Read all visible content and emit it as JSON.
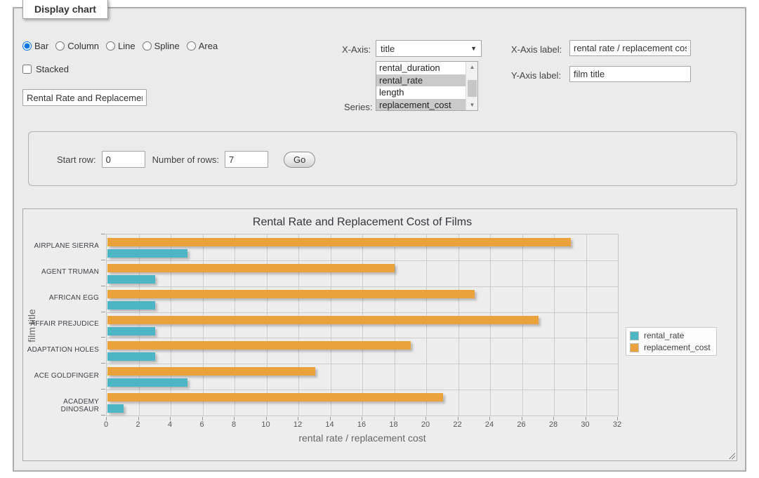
{
  "fieldset": {
    "legend": "Display chart"
  },
  "chart_type": {
    "options": [
      "Bar",
      "Column",
      "Line",
      "Spline",
      "Area"
    ],
    "selected": "Bar"
  },
  "stacked": {
    "label": "Stacked",
    "checked": false
  },
  "title_input": {
    "value": "Rental Rate and Replacement Cost of Films"
  },
  "x_axis": {
    "label": "X-Axis:",
    "selected": "title"
  },
  "series_picker": {
    "label": "Series:",
    "options": [
      {
        "label": "rental_duration",
        "selected": false
      },
      {
        "label": "rental_rate",
        "selected": true
      },
      {
        "label": "length",
        "selected": false
      },
      {
        "label": "replacement_cost",
        "selected": true
      }
    ]
  },
  "axis_labels": {
    "x_label": "X-Axis label:",
    "x_value": "rental rate / replacement cost",
    "y_label": "Y-Axis label:",
    "y_value": "film title"
  },
  "rows_panel": {
    "start_row_label": "Start row:",
    "start_row_value": "0",
    "num_rows_label": "Number of rows:",
    "num_rows_value": "7",
    "go_label": "Go"
  },
  "chart_data": {
    "type": "bar",
    "orientation": "horizontal",
    "title": "Rental Rate and Replacement Cost of Films",
    "xlabel": "rental rate / replacement cost",
    "ylabel": "film title",
    "categories": [
      "AIRPLANE SIERRA",
      "AGENT TRUMAN",
      "AFRICAN EGG",
      "AFFAIR PREJUDICE",
      "ADAPTATION HOLES",
      "ACE GOLDFINGER",
      "ACADEMY DINOSAUR"
    ],
    "series": [
      {
        "name": "rental_rate",
        "color": "#4cb6c4",
        "values": [
          4.99,
          2.99,
          2.99,
          2.99,
          2.99,
          4.99,
          0.99
        ]
      },
      {
        "name": "replacement_cost",
        "color": "#eaa23c",
        "values": [
          28.99,
          17.99,
          22.99,
          26.99,
          18.99,
          12.99,
          20.99
        ]
      }
    ],
    "xlim": [
      0,
      32
    ],
    "xticks": [
      0,
      2,
      4,
      6,
      8,
      10,
      12,
      14,
      16,
      18,
      20,
      22,
      24,
      26,
      28,
      30,
      32
    ],
    "grid": true,
    "legend_position": "right",
    "bar_order_top_to_bottom": [
      "replacement_cost",
      "rental_rate"
    ]
  }
}
